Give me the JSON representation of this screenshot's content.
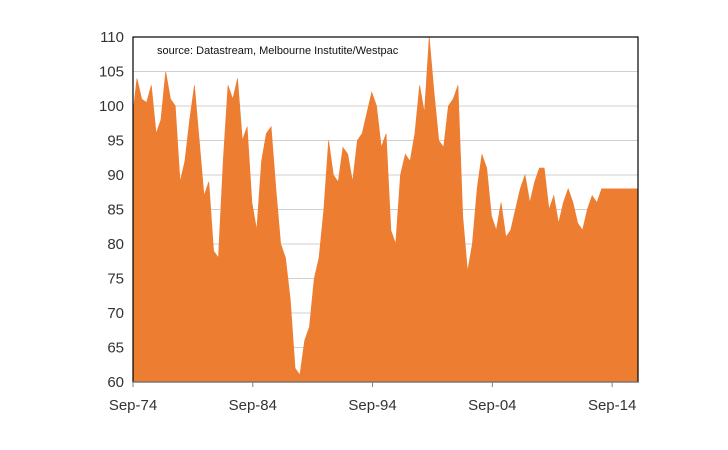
{
  "chart_data": {
    "type": "area",
    "source_note": "source:  Datastream, Melbourne Instutite/Westpac",
    "title": "",
    "xlabel": "",
    "ylabel": "",
    "ylim": [
      60,
      110
    ],
    "yticks": [
      60,
      65,
      70,
      75,
      80,
      85,
      90,
      95,
      100,
      105,
      110
    ],
    "xlim": [
      1974.67,
      2016.83
    ],
    "xticks": [
      {
        "x": 1974.67,
        "label": "Sep-74"
      },
      {
        "x": 1984.67,
        "label": "Sep-84"
      },
      {
        "x": 1994.67,
        "label": "Sep-94"
      },
      {
        "x": 2004.67,
        "label": "Sep-04"
      },
      {
        "x": 2014.67,
        "label": "Sep-14"
      }
    ],
    "grid": true,
    "series": [
      {
        "color": "#ed7d31",
        "x": [
          1974.67,
          1975.0,
          1975.4,
          1975.8,
          1976.2,
          1976.6,
          1977.0,
          1977.4,
          1977.8,
          1978.2,
          1978.6,
          1979.0,
          1979.4,
          1979.8,
          1980.2,
          1980.6,
          1981.0,
          1981.4,
          1981.8,
          1982.2,
          1982.6,
          1983.0,
          1983.4,
          1983.8,
          1984.2,
          1984.6,
          1985.0,
          1985.4,
          1985.8,
          1986.2,
          1986.6,
          1987.0,
          1987.4,
          1987.8,
          1988.2,
          1988.6,
          1989.0,
          1989.4,
          1989.8,
          1990.2,
          1990.6,
          1991.0,
          1991.4,
          1991.8,
          1992.2,
          1992.6,
          1993.0,
          1993.4,
          1993.8,
          1994.2,
          1994.6,
          1995.0,
          1995.4,
          1995.8,
          1996.2,
          1996.6,
          1997.0,
          1997.4,
          1997.8,
          1998.2,
          1998.6,
          1999.0,
          1999.4,
          1999.8,
          2000.2,
          2000.6,
          2001.0,
          2001.4,
          2001.8,
          2002.2,
          2002.6,
          2003.0,
          2003.4,
          2003.8,
          2004.2,
          2004.6,
          2005.0,
          2005.4,
          2005.8,
          2006.2,
          2006.6,
          2007.0,
          2007.4,
          2007.8,
          2008.2,
          2008.6,
          2009.0,
          2009.4,
          2009.8,
          2010.2,
          2010.6,
          2011.0,
          2011.4,
          2011.8,
          2012.2,
          2012.6,
          2013.0,
          2013.4,
          2013.8,
          2014.2,
          2014.6,
          2015.0,
          2015.4,
          2015.8,
          2016.2,
          2016.6,
          2016.83
        ],
        "y": [
          99,
          104,
          101,
          100.5,
          103,
          96,
          98,
          105,
          101,
          100,
          89,
          92,
          98,
          103,
          95,
          87,
          89,
          79,
          78,
          92,
          103,
          101,
          104,
          95,
          97,
          86,
          82,
          92,
          96,
          97,
          88,
          80,
          78,
          72,
          62,
          61,
          66,
          68,
          75,
          78,
          85,
          95,
          90,
          89,
          94,
          93,
          89,
          95,
          96,
          99,
          102,
          100,
          94,
          96,
          82,
          80,
          90,
          93,
          92,
          96,
          103,
          99,
          110,
          102,
          95,
          94,
          100,
          101,
          103,
          84,
          76,
          80,
          88,
          93,
          91,
          84,
          82,
          86,
          81,
          82,
          85,
          88,
          90,
          86,
          89,
          91,
          91,
          85,
          87,
          83,
          86,
          88,
          86,
          83,
          82,
          85,
          87,
          86,
          88,
          88,
          88,
          88,
          88,
          88,
          88,
          88,
          88
        ]
      }
    ]
  }
}
